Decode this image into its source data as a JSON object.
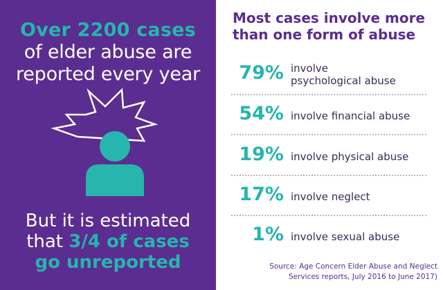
{
  "left_panel": {
    "headline": {
      "line1": "Over 2200 cases",
      "line2": "of elder abuse are",
      "line3": "reported every year"
    },
    "bottom": {
      "part1": "But it is estimated",
      "part2a": "that ",
      "part2b": "3/4 of cases",
      "part3": "go unreported"
    },
    "icon": "distressed-person-icon"
  },
  "chart_data": {
    "type": "table",
    "title": "Most cases involve more than one form of abuse",
    "rows": [
      {
        "value": 79,
        "label": "79%",
        "desc_line1": "involve",
        "desc_line2": "psychological abuse"
      },
      {
        "value": 54,
        "label": "54%",
        "desc_line1": "involve financial abuse",
        "desc_line2": ""
      },
      {
        "value": 19,
        "label": "19%",
        "desc_line1": "involve physical abuse",
        "desc_line2": ""
      },
      {
        "value": 17,
        "label": "17%",
        "desc_line1": "involve neglect",
        "desc_line2": ""
      },
      {
        "value": 1,
        "label": "1%",
        "desc_line1": "involve sexual abuse",
        "desc_line2": ""
      }
    ],
    "source_line1": "Source: Age Concern Elder Abuse and Neglect",
    "source_line2": "Services reports, July 2016 to June 2017)"
  },
  "colors": {
    "purple": "#5b2d90",
    "teal": "#27b5ad",
    "white": "#ffffff"
  }
}
